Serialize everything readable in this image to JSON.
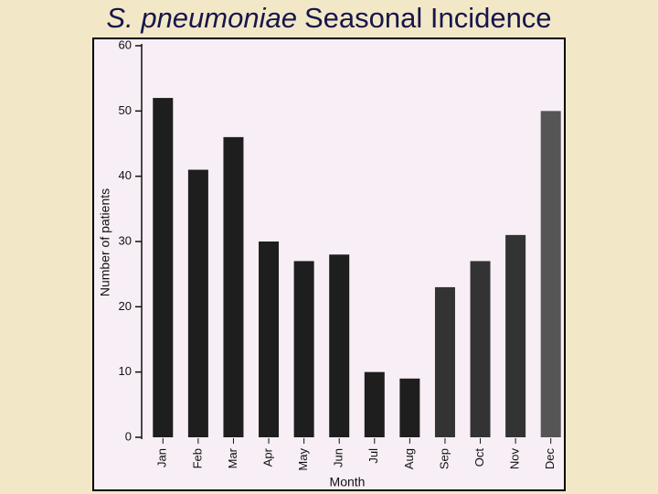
{
  "chart_data": {
    "type": "bar",
    "title": {
      "species": "S. pneumoniae",
      "rest": "Seasonal Incidence"
    },
    "x_label": "Month",
    "y_label": "Number of patients",
    "categories": [
      "Jan",
      "Feb",
      "Mar",
      "Apr",
      "May",
      "Jun",
      "Jul",
      "Aug",
      "Sep",
      "Oct",
      "Nov",
      "Dec"
    ],
    "values": [
      52,
      41,
      46,
      30,
      27,
      28,
      10,
      9,
      23,
      27,
      31,
      50
    ],
    "colors": [
      "#1e1e1e",
      "#1e1e1e",
      "#1e1e1e",
      "#1e1e1e",
      "#1e1e1e",
      "#1e1e1e",
      "#1e1e1e",
      "#1e1e1e",
      "#333333",
      "#333333",
      "#333333",
      "#555555"
    ],
    "ylim": [
      0,
      60
    ],
    "yticks": [
      0,
      10,
      20,
      30,
      40,
      50,
      60
    ],
    "grid": false
  }
}
